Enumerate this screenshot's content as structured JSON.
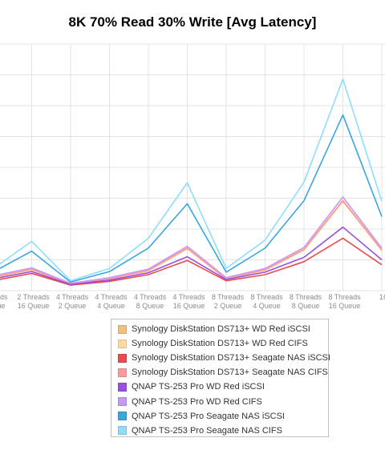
{
  "chart_data": {
    "type": "line",
    "title": "8K 70% Read 30% Write [Avg Latency]",
    "xlabel": "",
    "ylabel": "",
    "grid": true,
    "legend_position": "bottom",
    "categories": [
      [
        "Threads",
        "Queue"
      ],
      [
        "2 Threads",
        "16 Queue"
      ],
      [
        "4 Threads",
        "2 Queue"
      ],
      [
        "4 Threads",
        "4 Queue"
      ],
      [
        "4 Threads",
        "8 Queue"
      ],
      [
        "4 Threads",
        "16 Queue"
      ],
      [
        "8 Threads",
        "2 Queue"
      ],
      [
        "8 Threads",
        "4 Queue"
      ],
      [
        "8 Threads",
        "8 Queue"
      ],
      [
        "8 Threads",
        "16 Queue"
      ],
      [
        "16",
        ""
      ]
    ],
    "series": [
      {
        "name": "Synology DiskStation DS713+ WD Red iSCSI",
        "color": "#f0c080",
        "values": [
          2.1,
          3.4,
          1.1,
          1.9,
          3.2,
          6.8,
          1.9,
          3.3,
          6.6,
          14.5,
          6.5
        ]
      },
      {
        "name": "Synology DiskStation DS713+ WD Red CIFS",
        "color": "#ffd9a0",
        "values": [
          2.3,
          3.6,
          1.2,
          2.0,
          3.4,
          7.0,
          2.0,
          3.5,
          6.8,
          14.7,
          6.7
        ]
      },
      {
        "name": "Synology DiskStation DS713+ Seagate NAS iSCSI",
        "color": "#e84c4c",
        "values": [
          1.6,
          2.8,
          0.9,
          1.5,
          2.6,
          4.9,
          1.6,
          2.6,
          4.7,
          8.5,
          4.2
        ]
      },
      {
        "name": "Synology DiskStation DS713+ Seagate NAS CIFS",
        "color": "#ff9b9b",
        "values": [
          2.2,
          3.5,
          1.1,
          1.9,
          3.3,
          6.9,
          1.9,
          3.4,
          6.7,
          14.6,
          6.6
        ]
      },
      {
        "name": "QNAP TS-253 Pro WD Red iSCSI",
        "color": "#9b4fe0",
        "values": [
          1.9,
          3.1,
          1.0,
          1.7,
          2.9,
          5.5,
          1.8,
          3.0,
          5.4,
          10.3,
          5.0
        ]
      },
      {
        "name": "QNAP TS-253 Pro WD Red CIFS",
        "color": "#c599f5",
        "values": [
          2.4,
          3.7,
          1.2,
          2.1,
          3.5,
          7.2,
          2.1,
          3.6,
          7.0,
          15.2,
          6.9
        ]
      },
      {
        "name": "QNAP TS-253 Pro Seagate NAS iSCSI",
        "color": "#3aa6e0",
        "values": [
          3.0,
          6.4,
          1.4,
          3.1,
          6.9,
          14.1,
          3.0,
          6.9,
          14.6,
          28.5,
          12.0
        ]
      },
      {
        "name": "QNAP TS-253 Pro Seagate NAS CIFS",
        "color": "#8fdcff",
        "values": [
          3.5,
          8.0,
          1.6,
          3.6,
          8.5,
          17.5,
          3.6,
          8.2,
          17.6,
          34.3,
          14.5
        ]
      }
    ]
  }
}
